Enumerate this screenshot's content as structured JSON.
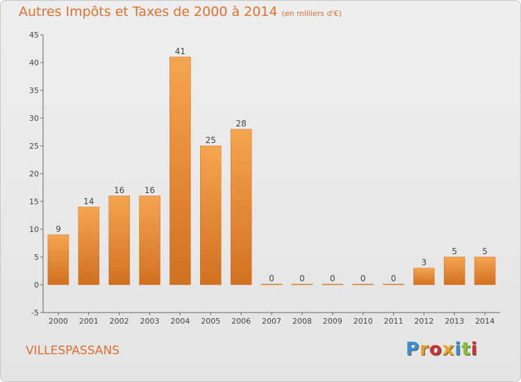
{
  "header": {
    "title": "Autres Impôts et Taxes de 2000 à 2014",
    "unit": "(en milliers d'€)"
  },
  "footer": {
    "commune": "VILLESPASSANS",
    "logo_text": "Proxiti"
  },
  "colors": {
    "accent": "#e07030",
    "bar_light": "#f5a550",
    "bar_dark": "#d07020",
    "logo_letters": [
      "#3a8fd0",
      "#e8a020",
      "#d03030",
      "#e8a020",
      "#3a8fd0",
      "#88c030",
      "#d03030"
    ]
  },
  "chart_data": {
    "type": "bar",
    "categories": [
      "2000",
      "2001",
      "2002",
      "2003",
      "2004",
      "2005",
      "2006",
      "2007",
      "2008",
      "2009",
      "2010",
      "2011",
      "2012",
      "2013",
      "2014"
    ],
    "values": [
      9,
      14,
      16,
      16,
      41,
      25,
      28,
      0,
      0,
      0,
      0,
      0,
      3,
      5,
      5
    ],
    "data_labels": [
      "9",
      "14",
      "16",
      "16",
      "41",
      "25",
      "28",
      "0",
      "0",
      "0",
      "0",
      "0",
      "3",
      "5",
      "5"
    ],
    "title": "Autres Impôts et Taxes de 2000 à 2014",
    "xlabel": "",
    "ylabel": "",
    "ylim": [
      -5,
      45
    ],
    "yticks": [
      -5,
      0,
      5,
      10,
      15,
      20,
      25,
      30,
      35,
      40,
      45
    ],
    "grid": false,
    "legend": "none"
  }
}
